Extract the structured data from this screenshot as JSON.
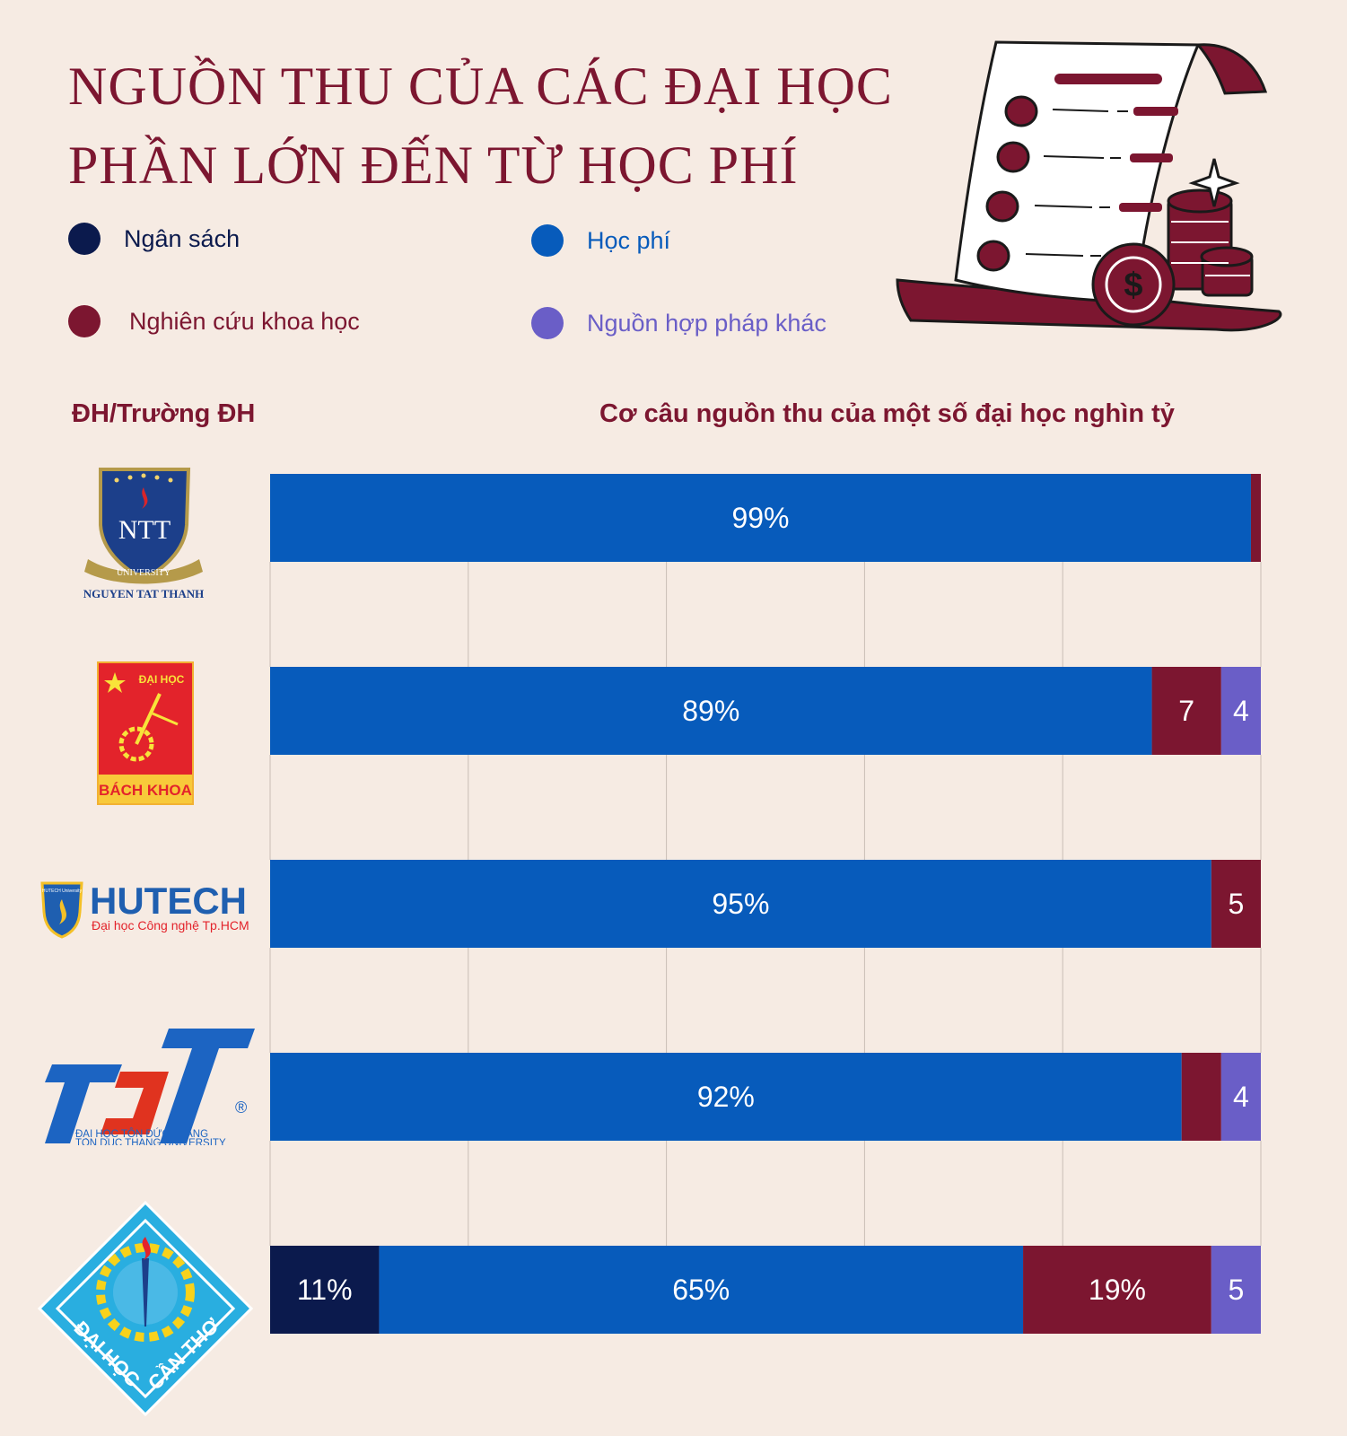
{
  "title": {
    "line1": "NGUỒN THU CỦA CÁC ĐẠI HỌC",
    "line2": "PHẦN LỚN ĐẾN TỪ HỌC PHÍ"
  },
  "legend": [
    {
      "label": "Ngân sách",
      "color": "#0b1a4d"
    },
    {
      "label": "Học phí",
      "color": "#075bbb"
    },
    {
      "label": "Nghiên cứu khoa học",
      "color": "#7c1630"
    },
    {
      "label": "Nguồn hợp pháp khác",
      "color": "#6a5ec7"
    }
  ],
  "headers": {
    "left": "ĐH/Trường ĐH",
    "right": "Cơ câu nguồn thu của một số đại học nghìn tỷ"
  },
  "logos": {
    "ntt": {
      "text": "NTT",
      "ribbon": "UNIVERSITY",
      "caption": "NGUYEN TAT THANH"
    },
    "bk": {
      "top": "ĐẠI HỌC",
      "bottom": "BÁCH KHOA"
    },
    "hutech": {
      "small": "HUTECH University",
      "name": "HUTECH",
      "subtitle": "Đại học Công nghệ Tp.HCM"
    },
    "tdt": {
      "mark": "TDT",
      "registered": "®",
      "caption1": "ĐẠI HỌC TÔN ĐỨC THẮNG",
      "caption2": "TON DUC THANG UNIVERSITY"
    },
    "ct": {
      "text1": "ĐẠI HỌC",
      "text2": "CẦN THƠ"
    }
  },
  "chart_data": {
    "type": "bar",
    "orientation": "horizontal",
    "stacked": true,
    "xlim": [
      0,
      100
    ],
    "categories": [
      "Nguyen Tat Thanh",
      "Bách Khoa",
      "HUTECH",
      "Tôn Đức Thắng",
      "Cần Thơ"
    ],
    "series": [
      {
        "name": "Ngân sách",
        "color": "#0b1a4d",
        "values": [
          0,
          0,
          0,
          0,
          11
        ]
      },
      {
        "name": "Học phí",
        "color": "#075bbb",
        "values": [
          99,
          89,
          95,
          92,
          65
        ]
      },
      {
        "name": "Nghiên cứu khoa học",
        "color": "#7c1630",
        "values": [
          1,
          7,
          5,
          4,
          19
        ]
      },
      {
        "name": "Nguồn hợp pháp khác",
        "color": "#6a5ec7",
        "values": [
          0,
          4,
          0,
          4,
          5
        ]
      }
    ],
    "data_labels": [
      [
        "",
        "99%",
        "",
        ""
      ],
      [
        "",
        "89%",
        "7",
        "4"
      ],
      [
        "",
        "95%",
        "5",
        ""
      ],
      [
        "",
        "92%",
        "",
        "4"
      ],
      [
        "11%",
        "65%",
        "19%",
        "5"
      ]
    ],
    "grid": true
  }
}
